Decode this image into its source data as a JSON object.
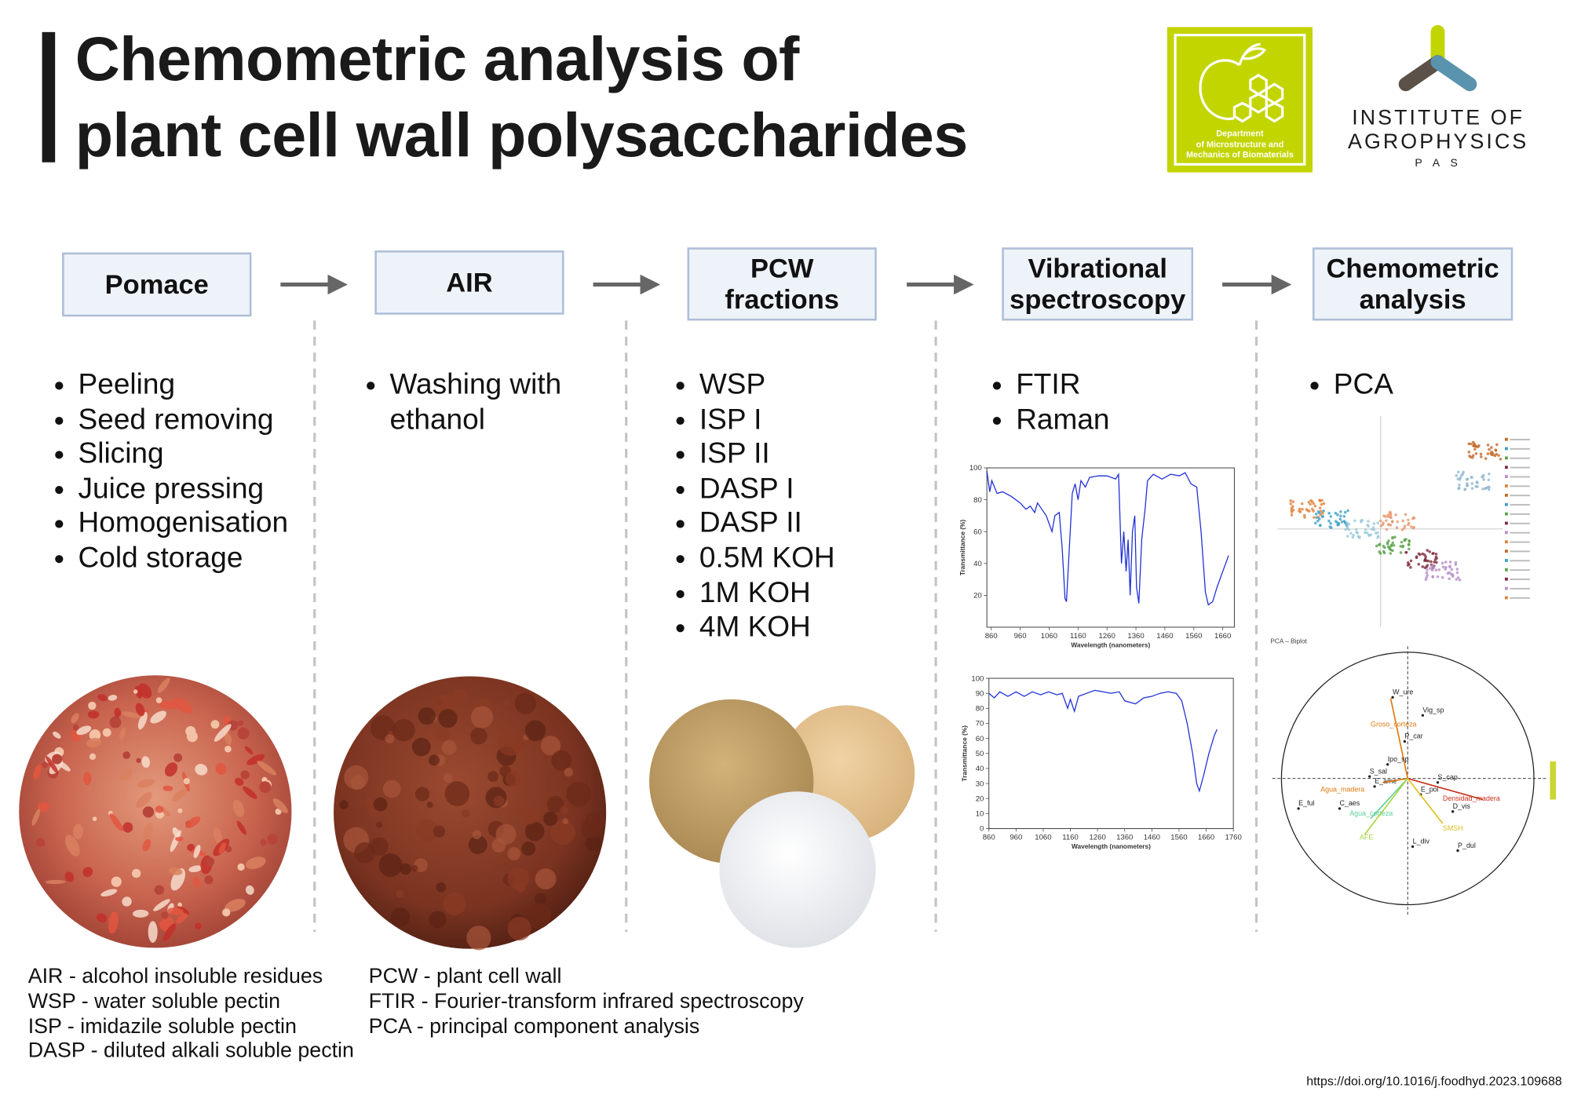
{
  "header": {
    "title": [
      "Chemometric analysis of",
      "plant cell wall polysaccharides"
    ],
    "department_logo": [
      "Department",
      "of Microstructure and",
      "Mechanics of Biomaterials"
    ],
    "institute_logo": [
      "INSTITUTE OF",
      "AGROPHYSICS",
      "P A S"
    ]
  },
  "steps": [
    {
      "label": [
        "Pomace"
      ],
      "items": [
        "Peeling",
        "Seed removing",
        "Slicing",
        "Juice pressing",
        "Homogenisation",
        "Cold storage"
      ]
    },
    {
      "label": [
        "AIR"
      ],
      "items": [
        "Washing with ethanol"
      ]
    },
    {
      "label": [
        "PCW",
        "fractions"
      ],
      "items": [
        "WSP",
        "ISP I",
        "ISP II",
        "DASP I",
        "DASP II",
        "0.5M KOH",
        "1M KOH",
        "4M KOH"
      ]
    },
    {
      "label": [
        "Vibrational",
        "spectroscopy"
      ],
      "items": [
        "FTIR",
        "Raman"
      ]
    },
    {
      "label": [
        "Chemometric",
        "analysis"
      ],
      "items": [
        "PCA"
      ]
    }
  ],
  "ftir_chart": {
    "y_label": "Transmittance (%)",
    "x_label": "Wavelength (nanometers)",
    "yticks": [
      100,
      80,
      60,
      40,
      20
    ],
    "xticks": [
      860,
      960,
      1060,
      1160,
      1260,
      1360,
      1460,
      1560,
      1660
    ]
  },
  "raman_chart": {
    "y_label": "Transmittance (%)",
    "x_label": "Wavelength (nanometers)",
    "yticks": [
      100,
      90,
      80,
      70,
      60,
      50,
      40,
      30,
      20,
      10,
      0
    ],
    "xticks": [
      860,
      960,
      1060,
      1160,
      1260,
      1360,
      1460,
      1560,
      1660,
      1760
    ]
  },
  "biplot": {
    "title": "PCA – Biplot",
    "labels": [
      "W_ure",
      "Groso_corteza",
      "Vig_sp",
      "P_car",
      "Ipo_sp",
      "S_sal",
      "E_ame",
      "S_cap",
      "E_pol",
      "Agua_madera",
      "Densidad_madera",
      "D_vis",
      "E_ful",
      "C_aes",
      "Agua_corteza",
      "SMSH",
      "AFE",
      "L_div",
      "P_dul"
    ]
  },
  "abbreviations": {
    "left": [
      "AIR - alcohol insoluble residues",
      "WSP - water soluble pectin",
      "ISP - imidazile soluble pectin",
      "DASP - diluted alkali soluble pectin"
    ],
    "right": [
      "PCW - plant cell wall",
      "FTIR - Fourier-transform infrared spectroscopy",
      "PCA - principal component analysis"
    ]
  },
  "doi": "https://doi.org/10.1016/j.foodhyd.2023.109688"
}
